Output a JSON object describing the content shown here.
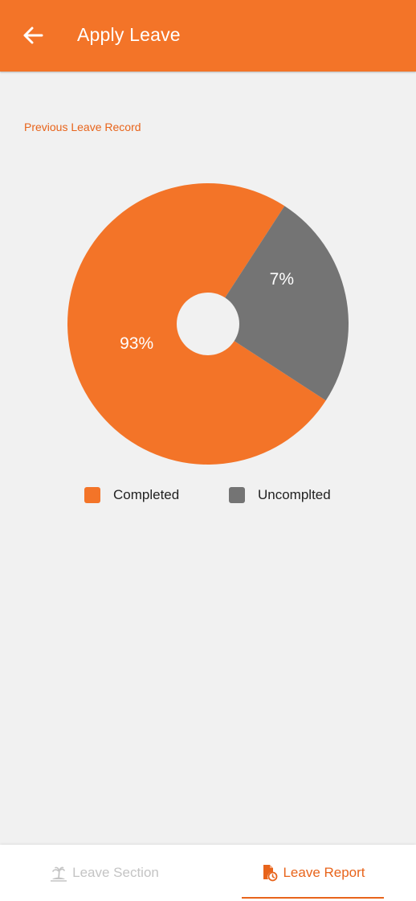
{
  "appbar": {
    "title": "Apply Leave",
    "back_icon": "arrow-left-icon",
    "background": "#f37428"
  },
  "section": {
    "label": "Previous Leave Record"
  },
  "chart_data": {
    "type": "pie",
    "donut": true,
    "categories": [
      "Completed",
      "Uncomplted"
    ],
    "values": [
      93,
      7
    ],
    "labels": [
      "93%",
      "7%"
    ],
    "colors": [
      "#f37428",
      "#747474"
    ],
    "title": "",
    "legend_position": "bottom"
  },
  "legend": {
    "items": [
      {
        "label": "Completed",
        "color": "#f37428"
      },
      {
        "label": "Uncomplted",
        "color": "#747474"
      }
    ]
  },
  "bottom_nav": {
    "tabs": [
      {
        "label": "Leave Section",
        "icon": "island-icon",
        "active": false
      },
      {
        "label": "Leave Report",
        "icon": "report-file-icon",
        "active": true
      }
    ],
    "accent": "#e8641b"
  }
}
